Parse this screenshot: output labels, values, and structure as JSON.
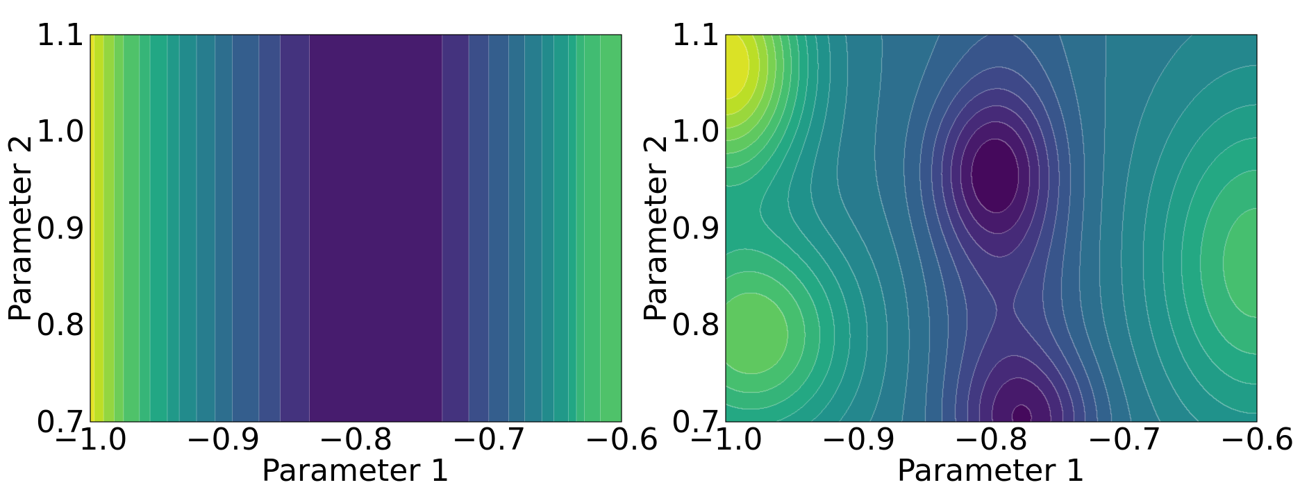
{
  "colors": {
    "colormap": "viridis",
    "background": "#ffffff",
    "axes_frame": "#000000",
    "contour_line": "#ffffff"
  },
  "chart_data": [
    {
      "type": "heatmap",
      "style": "filled-contour",
      "title": "",
      "xlabel": "Parameter 1",
      "ylabel": "Parameter 2",
      "xlim": [
        -1.0,
        -0.6
      ],
      "ylim": [
        0.7,
        1.1
      ],
      "xticks": [
        -1.0,
        -0.9,
        -0.8,
        -0.7,
        -0.6
      ],
      "yticks": [
        0.7,
        0.8,
        0.9,
        1.0,
        1.1
      ],
      "xtick_labels": [
        "−1.0",
        "−0.9",
        "−0.8",
        "−0.7",
        "−0.6"
      ],
      "ytick_labels": [
        "0.7",
        "0.8",
        "0.9",
        "1.0",
        "1.1"
      ],
      "grid": false,
      "levels": 20,
      "x_band_edges": [
        -1.0,
        -0.997,
        -0.99,
        -0.982,
        -0.975,
        -0.963,
        -0.955,
        -0.942,
        -0.933,
        -0.92,
        -0.906,
        -0.893,
        -0.873,
        -0.857,
        -0.835,
        -0.735,
        -0.715,
        -0.7,
        -0.685,
        -0.673,
        -0.66,
        -0.651,
        -0.64,
        -0.634,
        -0.628,
        -0.616,
        -0.6
      ],
      "band_values": [
        0.96,
        0.9,
        0.84,
        0.78,
        0.72,
        0.66,
        0.6,
        0.54,
        0.48,
        0.42,
        0.36,
        0.3,
        0.24,
        0.15,
        0.08,
        0.15,
        0.24,
        0.3,
        0.36,
        0.42,
        0.48,
        0.54,
        0.6,
        0.66,
        0.69,
        0.72
      ],
      "dependence": "function of Parameter 1 only; minimum band between -0.835 and -0.735"
    },
    {
      "type": "heatmap",
      "style": "filled-contour",
      "title": "",
      "xlabel": "Parameter 1",
      "ylabel": "Parameter 2",
      "xlim": [
        -1.0,
        -0.6
      ],
      "ylim": [
        0.7,
        1.1
      ],
      "xticks": [
        -1.0,
        -0.9,
        -0.8,
        -0.7,
        -0.6
      ],
      "yticks": [
        0.7,
        0.8,
        0.9,
        1.0,
        1.1
      ],
      "xtick_labels": [
        "−1.0",
        "−0.9",
        "−0.8",
        "−0.7",
        "−0.6"
      ],
      "ytick_labels": [
        "0.7",
        "0.8",
        "0.9",
        "1.0",
        "1.1"
      ],
      "grid": false,
      "levels": 20,
      "features": {
        "global_max": {
          "x": -1.0,
          "y": 1.07
        },
        "local_max_left": {
          "x": -0.98,
          "y": 0.79
        },
        "local_max_right": {
          "x": -0.6,
          "y": 0.86
        },
        "minimum_upper": {
          "x": -0.8,
          "y": 0.96
        },
        "minimum_lower": {
          "x": -0.77,
          "y": 0.7
        },
        "saddle": {
          "x": -0.76,
          "y": 0.82
        }
      }
    }
  ]
}
